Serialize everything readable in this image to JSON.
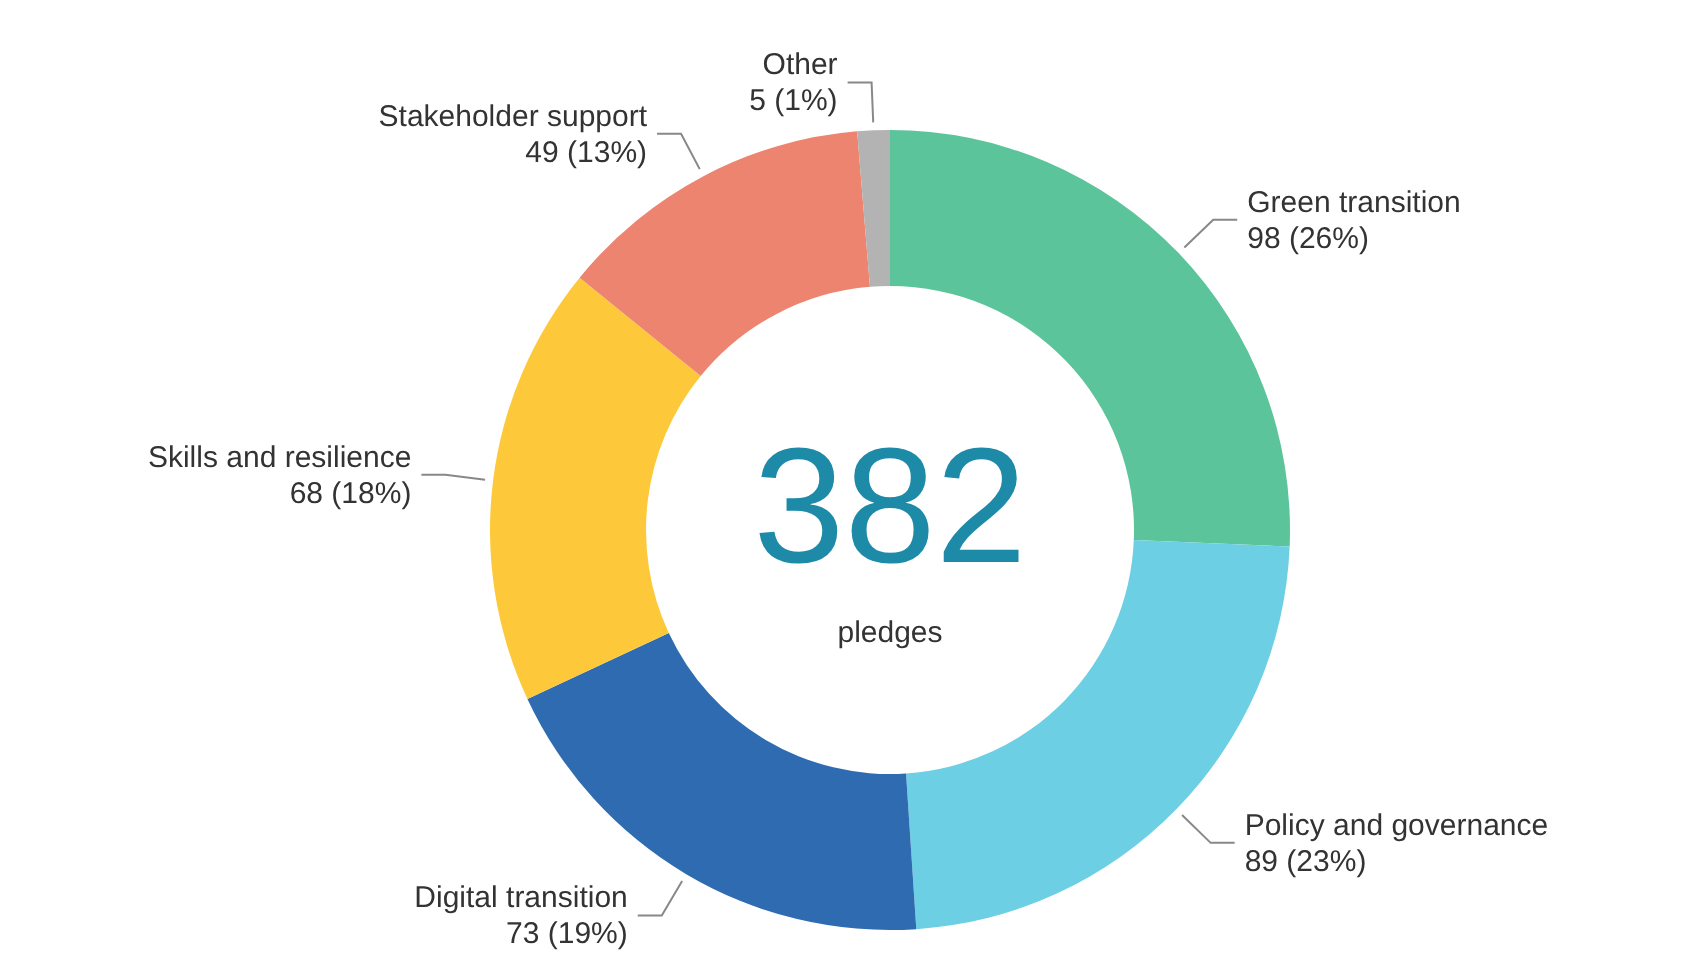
{
  "chart_data": {
    "type": "donut",
    "categories": [
      "Green transition",
      "Policy and governance",
      "Digital transition",
      "Skills and resilience",
      "Stakeholder support",
      "Other"
    ],
    "values": [
      98,
      89,
      73,
      68,
      49,
      5
    ],
    "value_labels": [
      "98 (26%)",
      "89 (23%)",
      "73 (19%)",
      "68 (18%)",
      "49 (13%)",
      "5 (1%)"
    ],
    "colors": [
      "#5cc49a",
      "#6dcfe3",
      "#2e6bb0",
      "#fdc93a",
      "#ec8470",
      "#b3b3b3"
    ],
    "annotations": [
      "382",
      "pledges"
    ],
    "legend": false
  }
}
